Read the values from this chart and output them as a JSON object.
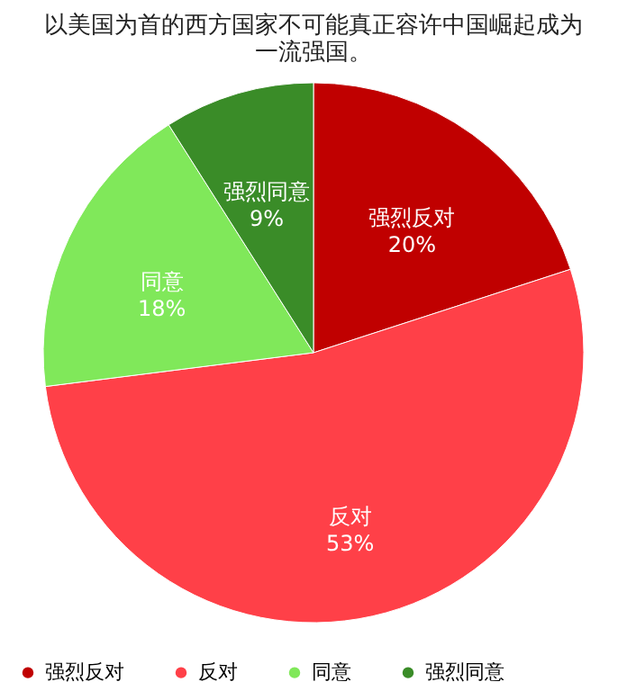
{
  "chart_data": {
    "type": "pie",
    "title": "以美国为首的西方国家不可能真正容许中国崛起成为一流强国。",
    "categories": [
      "强烈反对",
      "反对",
      "同意",
      "强烈同意"
    ],
    "values": [
      20,
      53,
      18,
      9
    ],
    "value_labels": [
      "20%",
      "53%",
      "18%",
      "9%"
    ],
    "colors": [
      "#c00000",
      "#ff4048",
      "#80e85a",
      "#3a8c28"
    ],
    "legend": "bottom"
  }
}
